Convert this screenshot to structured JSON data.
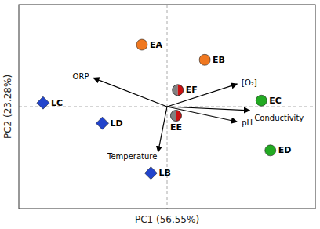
{
  "chart_data": {
    "type": "scatter",
    "xlabel": "PC1 (56.55%)",
    "ylabel": "PC2 (23.28%)",
    "xlim": [
      -1.65,
      1.65
    ],
    "ylim": [
      -1.35,
      1.35
    ],
    "tick_labels": false,
    "series": [
      {
        "color": "#f07820",
        "marker": "circle",
        "x": [
          -0.28,
          0.42
        ],
        "values": [
          0.82,
          0.62
        ],
        "labels": [
          "EA",
          "EB"
        ]
      },
      {
        "color": "#22aa22",
        "marker": "circle",
        "x": [
          1.05,
          1.15
        ],
        "values": [
          0.08,
          -0.58
        ],
        "labels": [
          "EC",
          "ED"
        ]
      },
      {
        "color": "#2244cc",
        "marker": "diamond",
        "x": [
          -1.38,
          -0.72,
          -0.18
        ],
        "values": [
          0.05,
          -0.22,
          -0.88
        ],
        "labels": [
          "LC",
          "LD",
          "LB"
        ]
      },
      {
        "color": "#cc1111",
        "marker": "half-circle",
        "x": [
          0.12,
          0.1
        ],
        "values": [
          0.22,
          -0.12
        ],
        "labels": [
          "EF",
          "EE"
        ]
      },
      {
        "type": "arrow",
        "color": "#000000",
        "x": [
          -0.82,
          0.78,
          0.92,
          0.78,
          -0.1
        ],
        "values": [
          0.38,
          0.3,
          -0.05,
          -0.2,
          -0.6
        ],
        "labels": [
          "ORP",
          "[O₂]",
          "Conductivity",
          "pH",
          "Temperature"
        ]
      }
    ]
  }
}
